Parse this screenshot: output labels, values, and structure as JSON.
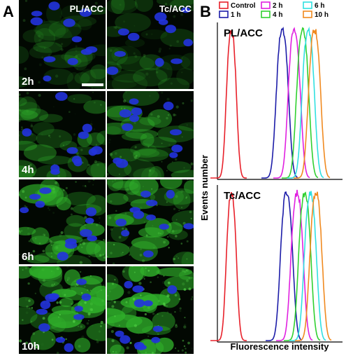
{
  "panel_a": {
    "label": "A",
    "columns": [
      "PL/ACC",
      "Tc/ACC"
    ],
    "rows": [
      "2h",
      "4h",
      "6h",
      "10h"
    ]
  },
  "panel_b": {
    "label": "B",
    "legend": [
      "Control",
      "1 h",
      "2 h",
      "4 h",
      "6 h",
      "10 h"
    ],
    "plots": [
      "PL/ACC",
      "Tc/ACC"
    ],
    "y_label": "Events number",
    "x_label": "Fluorescence intensity"
  }
}
